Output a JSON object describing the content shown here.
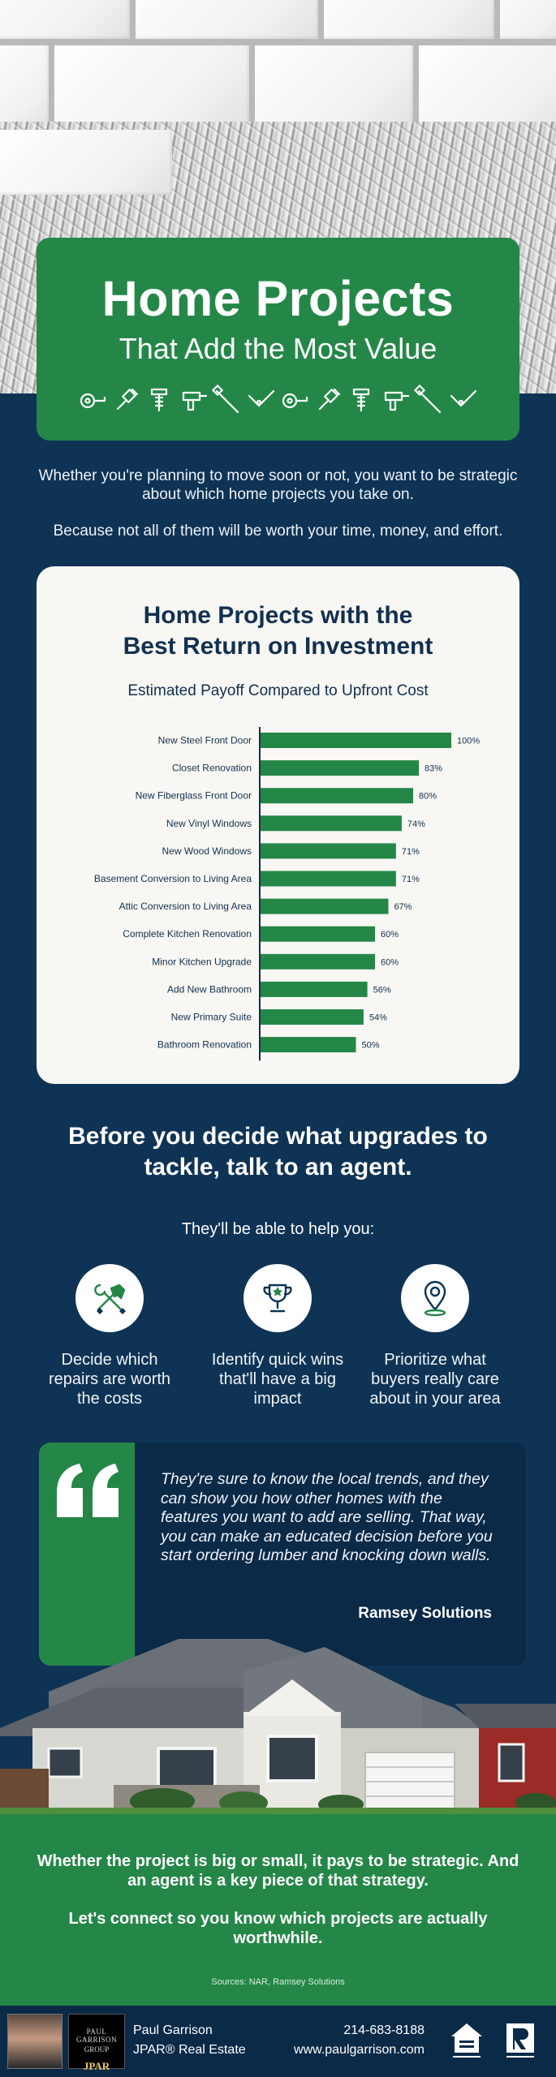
{
  "header": {
    "title": "Home Projects",
    "subtitle": "That Add the Most Value",
    "tool_icons": [
      "tape-measure-icon",
      "paintbrush-icon",
      "screw-icon",
      "drill-icon",
      "screwdriver-icon",
      "level-icon",
      "tape-measure-icon",
      "paintbrush-icon",
      "screw-icon",
      "drill-icon",
      "screwdriver-icon",
      "level-icon"
    ]
  },
  "intro": {
    "p1": "Whether you're planning to move soon or not, you want to be strategic about which home projects you take on.",
    "p2": "Because not all of them will be worth your time, money, and effort."
  },
  "chart_data": {
    "type": "bar",
    "orientation": "horizontal",
    "title_line1": "Home Projects with the",
    "title_line2": "Best Return on Investment",
    "subtitle": "Estimated Payoff Compared to Upfront Cost",
    "categories": [
      "New Steel Front Door",
      "Closet Renovation",
      "New Fiberglass Front Door",
      "New Vinyl Windows",
      "New Wood Windows",
      "Basement Conversion to Living Area",
      "Attic Conversion to Living Area",
      "Complete Kitchen Renovation",
      "Minor Kitchen Upgrade",
      "Add New Bathroom",
      "New Primary Suite",
      "Bathroom Renovation"
    ],
    "values": [
      100,
      83,
      80,
      74,
      71,
      71,
      67,
      60,
      60,
      56,
      54,
      50
    ],
    "value_suffix": "%",
    "xlim": [
      0,
      100
    ],
    "grid": false,
    "legend": "none",
    "bar_color": "#248748"
  },
  "agent": {
    "title": "Before you decide what upgrades to tackle, talk to an agent.",
    "subtitle": "They'll be able to help you:",
    "benefits": [
      {
        "icon": "hammer-wrench-icon",
        "text": "Decide which repairs are worth the costs"
      },
      {
        "icon": "trophy-icon",
        "text": "Identify quick wins that'll have a big impact"
      },
      {
        "icon": "location-pin-icon",
        "text": "Prioritize what buyers really care about in your area"
      }
    ]
  },
  "quote": {
    "text": "They're sure to know the local trends, and they can show you how other homes with the features you want to add are selling. That way, you can make an educated decision before you start ordering lumber and knocking down walls.",
    "author": "Ramsey Solutions"
  },
  "closing": {
    "line1": "Whether the project is big or small, it pays to be strategic. And an agent is a key piece of that strategy.",
    "line2": "Let's connect so you know which projects are actually worthwhile.",
    "sources": "Sources: NAR, Ramsey Solutions"
  },
  "footer": {
    "name": "Paul Garrison",
    "company": "JPAR® Real Estate",
    "phone": "214-683-8188",
    "website": "www.paulgarrison.com",
    "logo_lines": [
      "PAUL GARRISON",
      "GROUP",
      "JPAR"
    ]
  },
  "colors": {
    "navy": "#0e3355",
    "green": "#248748",
    "card": "#f8f7f3"
  }
}
